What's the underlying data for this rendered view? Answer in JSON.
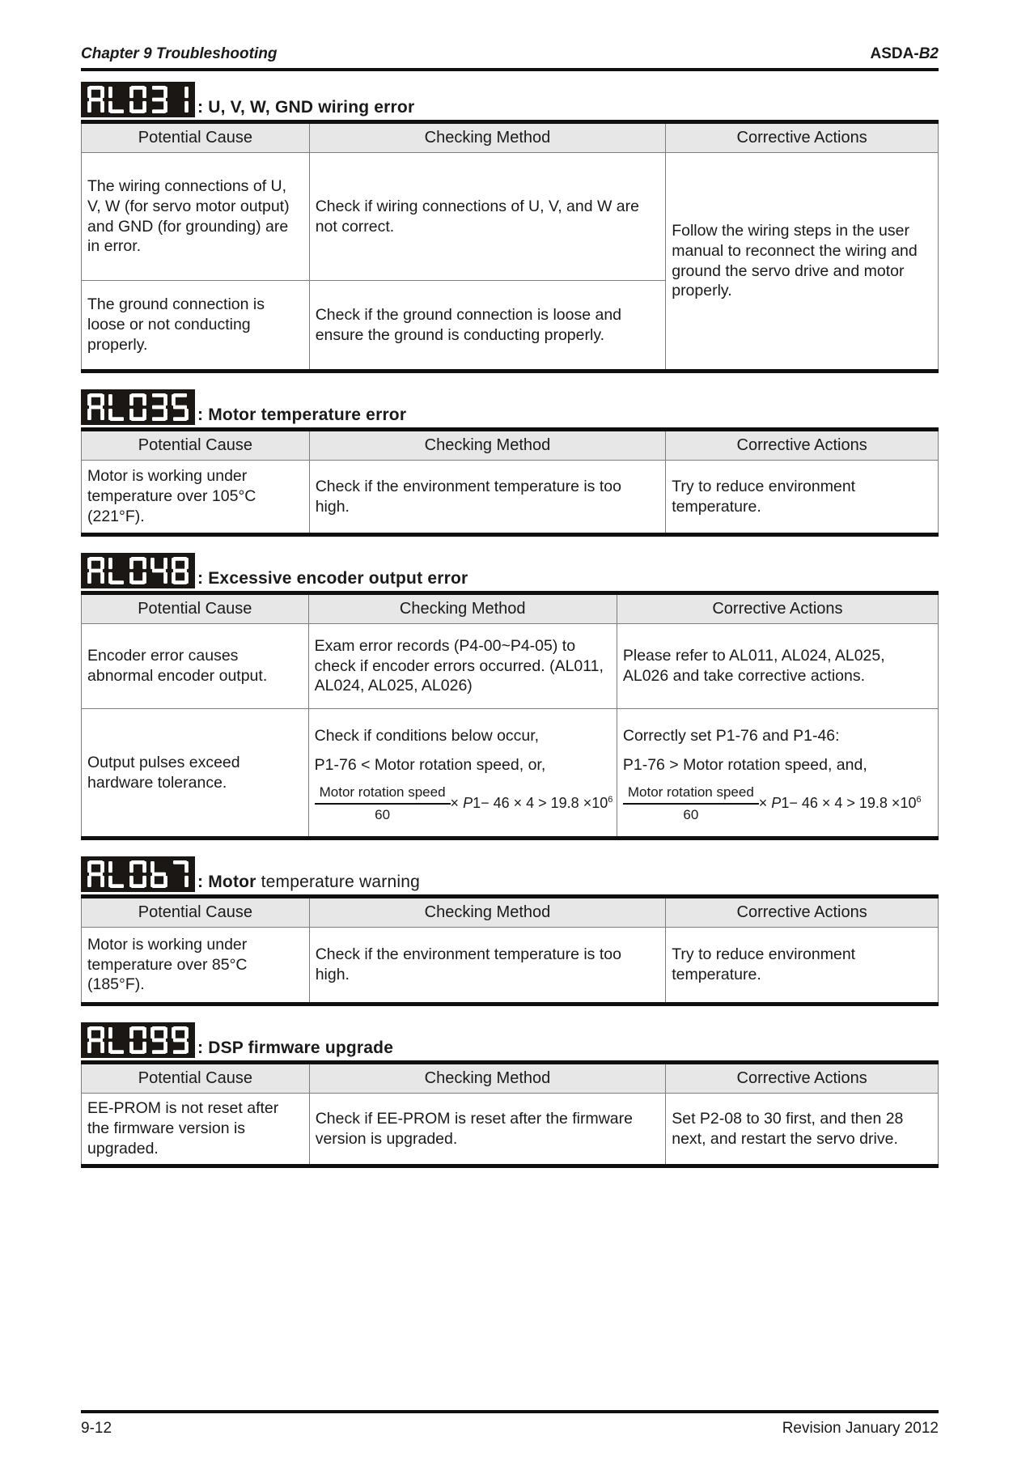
{
  "header": {
    "chapter": "Chapter 9 Troubleshooting",
    "product_plain": "ASDA-",
    "product_italic": "B2"
  },
  "footer": {
    "page_number": "9-12",
    "revision": "Revision January 2012"
  },
  "column_headers": [
    "Potential Cause",
    "Checking Method",
    "Corrective Actions"
  ],
  "sections": [
    {
      "code": "AL031",
      "caption_bold": ": U, V, W, GND wiring error",
      "caption_regular": "",
      "rows": [
        {
          "cause": "The wiring connections of U, V, W (for servo motor output) and GND (for grounding) are in error.",
          "checking": "Check if wiring connections of U, V, and W are not correct."
        },
        {
          "cause": "The ground connection is loose or not conducting properly.",
          "checking": "Check if the ground connection is loose and ensure the ground is conducting properly."
        }
      ],
      "corrective_merged": "Follow the wiring steps in the user manual to reconnect the wiring and ground the servo drive and motor properly."
    },
    {
      "code": "AL035",
      "caption_bold": ": Motor temperature error",
      "caption_regular": "",
      "rows": [
        {
          "cause": "Motor is working under temperature over 105°C (221°F).",
          "checking": "Check if the environment temperature is too high.",
          "corrective": "Try to reduce environment temperature."
        }
      ]
    },
    {
      "code": "AL048",
      "caption_bold": ": Excessive encoder output error",
      "caption_regular": "",
      "rows": [
        {
          "cause": "Encoder error causes abnormal encoder output.",
          "checking": "Exam error records (P4-00~P4-05) to check if encoder errors occurred. (AL011, AL024, AL025, AL026)",
          "corrective": "Please refer to AL011, AL024, AL025, AL026 and take corrective actions."
        },
        {
          "cause": "Output pulses exceed hardware tolerance.",
          "checking_line1": "Check if conditions below occur,",
          "checking_line2": "P1-76 < Motor rotation speed, or,",
          "checking_formula": {
            "numerator": "Motor rotation speed",
            "denominator": "60",
            "times": "× ",
            "variable": "P",
            "expression": "1− 46 × 4 > 19.8 ×10",
            "exponent": "6"
          },
          "corrective_line1": "Correctly set P1-76 and P1-46:",
          "corrective_line2": "P1-76 > Motor rotation speed, and,",
          "corrective_formula": {
            "numerator": "Motor rotation speed",
            "denominator": "60",
            "times": "× ",
            "variable": "P",
            "expression": "1− 46 × 4 > 19.8 ×10",
            "exponent": "6"
          }
        }
      ]
    },
    {
      "code": "AL067",
      "caption_bold": ": Motor",
      "caption_regular": " temperature warning",
      "rows": [
        {
          "cause": "Motor is working under temperature over 85°C (185°F).",
          "checking": "Check if the environment temperature is too high.",
          "corrective": "Try to reduce environment temperature."
        }
      ]
    },
    {
      "code": "AL099",
      "caption_bold": ": DSP firmware upgrade",
      "caption_regular": "",
      "rows": [
        {
          "cause": "EE-PROM is not reset after the firmware version is upgraded.",
          "checking": "Check if EE-PROM is reset after the firmware version is upgraded.",
          "corrective": "Set P2-08 to 30 first, and then 28 next, and restart the servo drive."
        }
      ]
    }
  ],
  "badge_color": "#1a1715",
  "segment_color": "#ffffff",
  "header_fill": "#e7e7e7"
}
